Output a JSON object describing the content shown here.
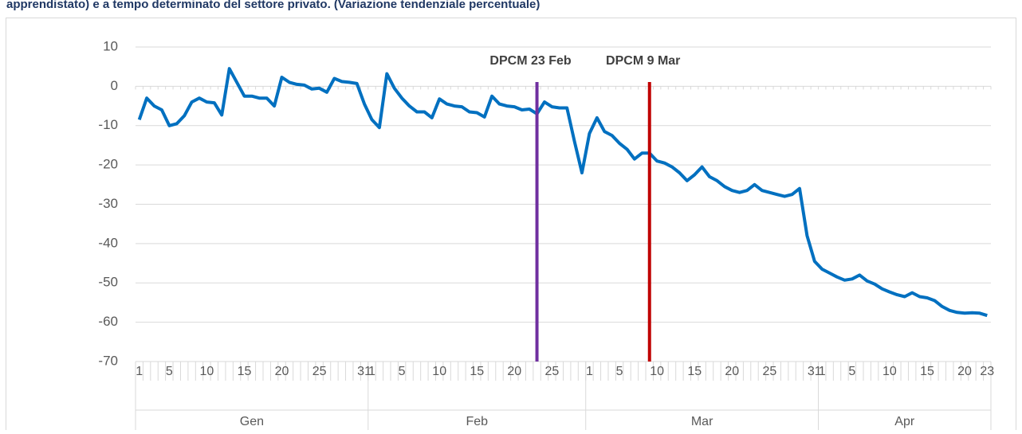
{
  "chart_data": {
    "type": "line",
    "title": "apprendistato) e a tempo determinato del settore privato. (Variazione tendenziale percentuale)",
    "categories": [
      "1",
      null,
      null,
      null,
      "5",
      null,
      null,
      null,
      null,
      "10",
      null,
      null,
      null,
      null,
      "15",
      null,
      null,
      null,
      null,
      "20",
      null,
      null,
      null,
      null,
      "25",
      null,
      null,
      null,
      null,
      null,
      "31",
      "1",
      null,
      null,
      null,
      "5",
      null,
      null,
      null,
      null,
      "10",
      null,
      null,
      null,
      null,
      "15",
      null,
      null,
      null,
      null,
      "20",
      null,
      null,
      null,
      null,
      "25",
      null,
      null,
      null,
      null,
      "1",
      null,
      null,
      null,
      "5",
      null,
      null,
      null,
      null,
      "10",
      null,
      null,
      null,
      null,
      "15",
      null,
      null,
      null,
      null,
      "20",
      null,
      null,
      null,
      null,
      "25",
      null,
      null,
      null,
      null,
      null,
      "31",
      "1",
      null,
      null,
      null,
      "5",
      null,
      null,
      null,
      null,
      "10",
      null,
      null,
      null,
      null,
      "15",
      null,
      null,
      null,
      null,
      "20",
      null,
      null,
      "23"
    ],
    "groups": [
      "Gen",
      "Feb",
      "Mar",
      "Apr"
    ],
    "series": [
      {
        "color": "#0070c0",
        "values": [
          -8.5,
          -3,
          -5,
          -6,
          -10,
          -9.5,
          -7.5,
          -4,
          -3,
          -4,
          -4.2,
          -7.3,
          4.5,
          1,
          -2.5,
          -2.5,
          -3,
          -3,
          -5,
          2.3,
          1,
          0.5,
          0.3,
          -0.7,
          -0.5,
          -1.5,
          2,
          1.2,
          1,
          0.7,
          -4.5,
          -8.5,
          -10.5,
          3.2,
          -0.5,
          -3,
          -5,
          -6.5,
          -6.5,
          -8,
          -3.2,
          -4.5,
          -5,
          -5.2,
          -6.5,
          -6.7,
          -7.8,
          -2.5,
          -4.5,
          -5,
          -5.2,
          -6,
          -5.8,
          -7,
          -4,
          -5.2,
          -5.5,
          -5.5,
          -14,
          -22,
          -12,
          -8,
          -11.5,
          -12.5,
          -14.5,
          -16,
          -18.5,
          -17,
          -17,
          -19,
          -19.5,
          -20.5,
          -22,
          -24,
          -22.5,
          -20.5,
          -23,
          -24,
          -25.5,
          -26.5,
          -27,
          -26.5,
          -25,
          -26.5,
          -27,
          -27.5,
          -28,
          -27.5,
          -26,
          -38,
          -44.5,
          -46.5,
          -47.5,
          -48.5,
          -49.3,
          -49,
          -48,
          -49.5,
          -50.3,
          -51.5,
          -52.3,
          -53,
          -53.5,
          -52.5,
          -53.5,
          -53.8,
          -54.5,
          -56,
          -57,
          -57.5,
          -57.7,
          -57.6,
          -57.7,
          -58.3
        ]
      }
    ],
    "annotations": [
      {
        "label": "DPCM 23 Feb",
        "x": 53,
        "color": "#7030a0"
      },
      {
        "label": "DPCM 9 Mar",
        "x": 68,
        "color": "#c00000"
      }
    ],
    "ylim": [
      -70,
      10
    ],
    "yticks": [
      -70,
      -60,
      -50,
      -40,
      -30,
      -20,
      -10,
      0,
      10
    ],
    "grid": true
  }
}
